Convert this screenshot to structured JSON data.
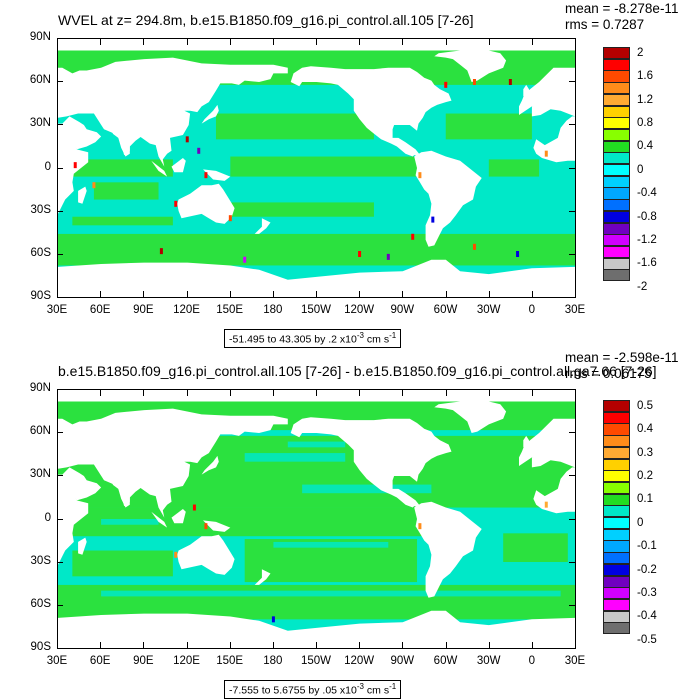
{
  "panels": [
    {
      "title": "WVEL at z= 294.8m, b.e15.B1850.f09_g16.pi_control.all.105 [7-26]",
      "mean_label": "mean = -8.278e-11",
      "rms_label": "rms = 0.7287",
      "info_prefix": "-51.495 to 43.305 by .2 x10",
      "info_exp": "-3",
      "info_unit": " cm s",
      "info_unit_exp": "-1",
      "lat_labels": [
        "90N",
        "60N",
        "30N",
        "0",
        "30S",
        "60S",
        "90S"
      ],
      "lon_labels": [
        "30E",
        "60E",
        "90E",
        "120E",
        "150E",
        "180",
        "150W",
        "120W",
        "90W",
        "60W",
        "30W",
        "0",
        "30E"
      ],
      "colorbar_labels": [
        "2",
        "1.6",
        "1.2",
        "0.8",
        "0.4",
        "0",
        "-0.4",
        "-0.8",
        "-1.2",
        "-1.6",
        "-2"
      ]
    },
    {
      "title": "b.e15.B1850.f09_g16.pi_control.all.105 [7-26] - b.e15.B1850.f09_g16.pi_control.all.ga7.66 [7-26]",
      "mean_label": "mean = -2.598e-11",
      "rms_label": "rms = 0.06175",
      "info_prefix": "-7.555 to 5.6755 by .05 x10",
      "info_exp": "-3",
      "info_unit": " cm s",
      "info_unit_exp": "-1",
      "lat_labels": [
        "90N",
        "60N",
        "30N",
        "0",
        "30S",
        "60S",
        "90S"
      ],
      "lon_labels": [
        "30E",
        "60E",
        "90E",
        "120E",
        "150E",
        "180",
        "150W",
        "120W",
        "90W",
        "60W",
        "30W",
        "0",
        "30E"
      ],
      "colorbar_labels": [
        "0.5",
        "0.4",
        "0.3",
        "0.2",
        "0.1",
        "0",
        "-0.1",
        "-0.2",
        "-0.3",
        "-0.4",
        "-0.5"
      ]
    }
  ],
  "colors": {
    "ocean_near_zero": "#00e8c8",
    "ocean_positive": "#30e030",
    "land": "#ffffff",
    "colorbar": [
      "#b40000",
      "#ff0000",
      "#ff4a00",
      "#ff8c1a",
      "#ffaa33",
      "#ffd000",
      "#ffff00",
      "#88ff00",
      "#22dd22",
      "#00e8c8",
      "#00ffff",
      "#00d0ff",
      "#00a8ff",
      "#0070ff",
      "#0000e0",
      "#7000c0",
      "#d000ff",
      "#ff00ff",
      "#c8c8c8",
      "#6e6e6e"
    ]
  },
  "chart_data": [
    {
      "type": "heatmap",
      "title": "WVEL at z= 294.8m, b.e15.B1850.f09_g16.pi_control.all.105 [7-26]",
      "xlabel": "",
      "ylabel": "",
      "x_ticks": [
        "30E",
        "60E",
        "90E",
        "120E",
        "150E",
        "180",
        "150W",
        "120W",
        "90W",
        "60W",
        "30W",
        "0",
        "30E"
      ],
      "y_ticks": [
        "90N",
        "60N",
        "30N",
        "0",
        "30S",
        "60S",
        "90S"
      ],
      "xlim": [
        30,
        390
      ],
      "ylim": [
        -90,
        90
      ],
      "contour_min": -51.495,
      "contour_max": 43.305,
      "contour_interval": 0.2,
      "colorbar_levels": [
        2,
        1.6,
        1.2,
        0.8,
        0.4,
        0,
        -0.4,
        -0.8,
        -1.2,
        -1.6,
        -2
      ],
      "mean": -8.278e-11,
      "rms": 0.7287
    },
    {
      "type": "heatmap",
      "title": "b.e15.B1850.f09_g16.pi_control.all.105 [7-26] - b.e15.B1850.f09_g16.pi_control.all.ga7.66 [7-26]",
      "xlabel": "",
      "ylabel": "",
      "x_ticks": [
        "30E",
        "60E",
        "90E",
        "120E",
        "150E",
        "180",
        "150W",
        "120W",
        "90W",
        "60W",
        "30W",
        "0",
        "30E"
      ],
      "y_ticks": [
        "90N",
        "60N",
        "30N",
        "0",
        "30S",
        "60S",
        "90S"
      ],
      "xlim": [
        30,
        390
      ],
      "ylim": [
        -90,
        90
      ],
      "contour_min": -7.555,
      "contour_max": 5.6755,
      "contour_interval": 0.05,
      "colorbar_levels": [
        0.5,
        0.4,
        0.3,
        0.2,
        0.1,
        0,
        -0.1,
        -0.2,
        -0.3,
        -0.4,
        -0.5
      ],
      "mean": -2.598e-11,
      "rms": 0.06175
    }
  ]
}
